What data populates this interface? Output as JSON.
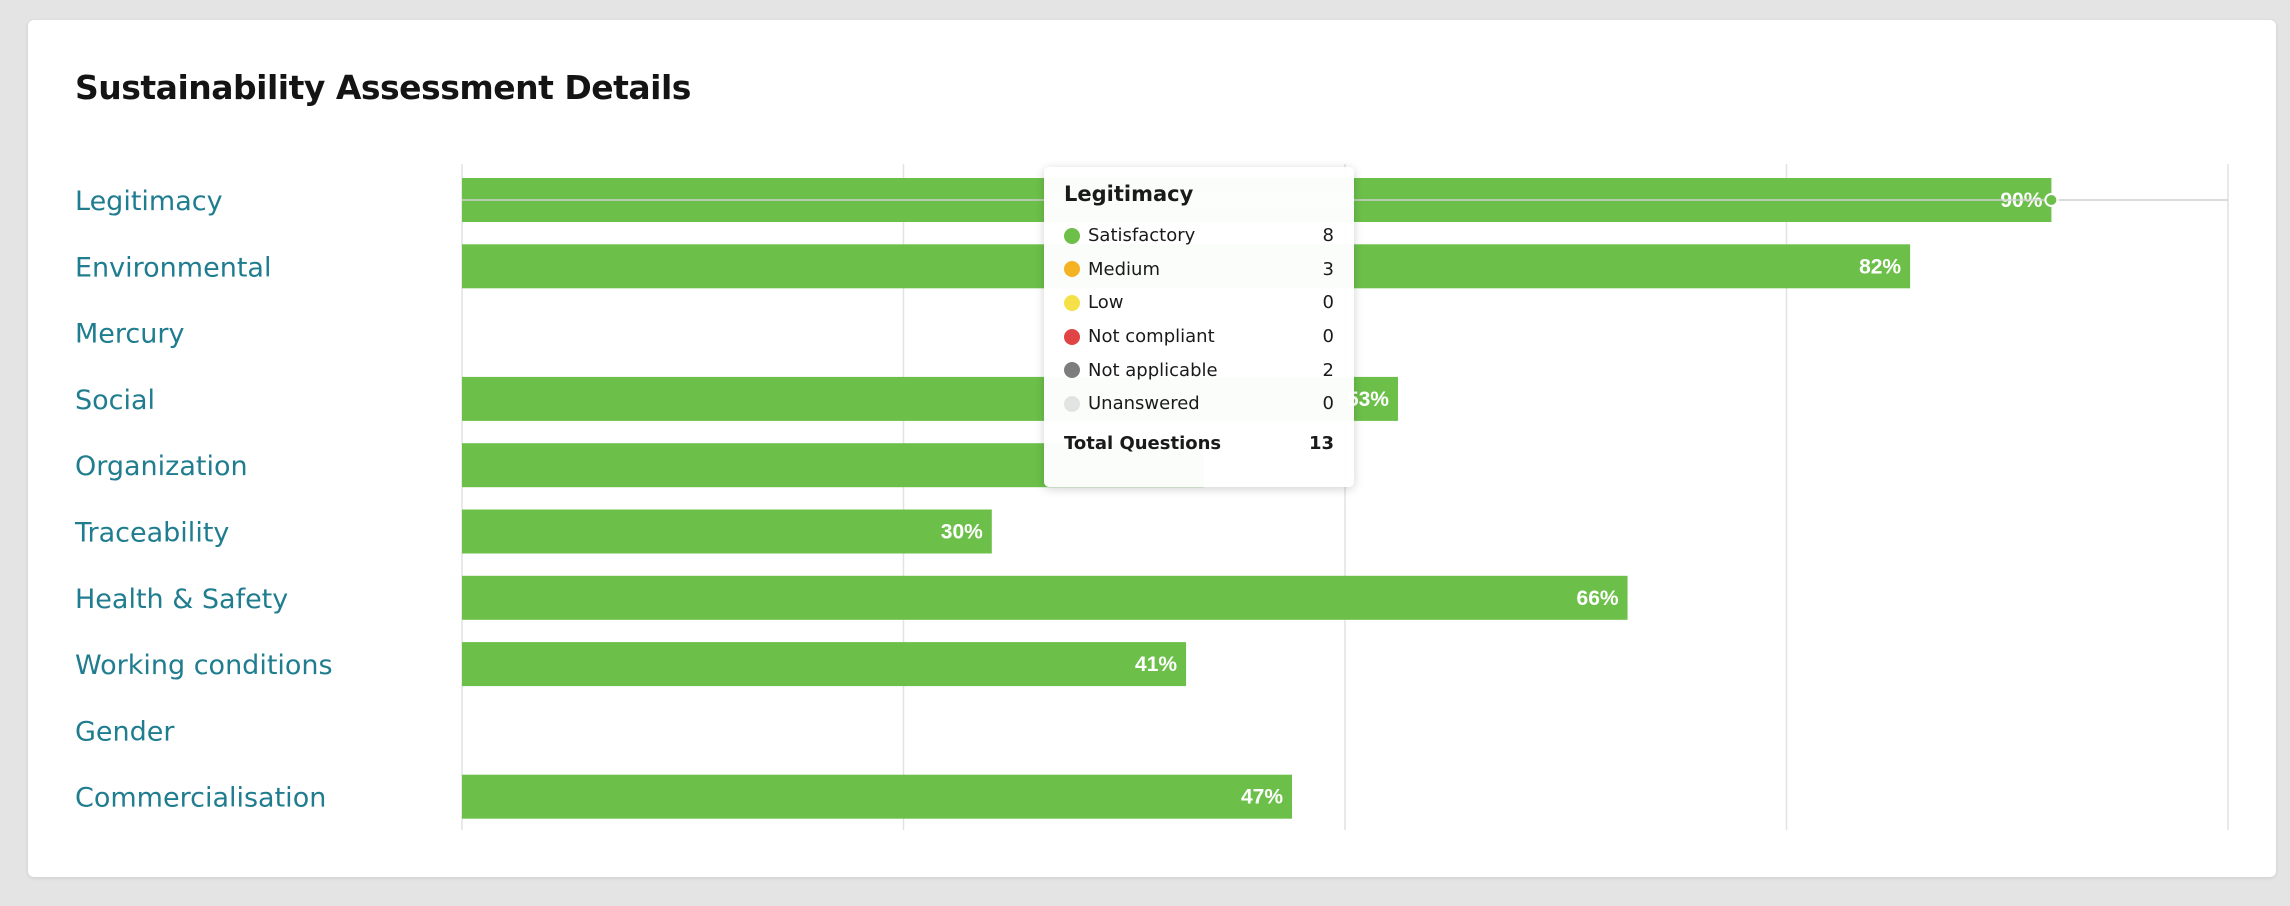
{
  "page": {
    "title": "Sustainability Assessment Details"
  },
  "chart_data": {
    "type": "bar",
    "orientation": "horizontal",
    "categories": [
      "Legitimacy",
      "Environmental",
      "Mercury",
      "Social",
      "Organization",
      "Traceability",
      "Health & Safety",
      "Working conditions",
      "Gender",
      "Commercialisation"
    ],
    "values": [
      90,
      82,
      null,
      53,
      42,
      30,
      66,
      41,
      null,
      47
    ],
    "value_labels": [
      "90%",
      "82%",
      "",
      "53%",
      "",
      "30%",
      "66%",
      "41%",
      "",
      "47%"
    ],
    "xlim": [
      0,
      100
    ],
    "grid": true,
    "bar_color": "#6cc04a",
    "label_color": "#1f7d8f",
    "hovered_category": "Legitimacy"
  },
  "tooltip": {
    "title": "Legitimacy",
    "rows": [
      {
        "label": "Satisfactory",
        "value": "8",
        "color": "#6cc04a"
      },
      {
        "label": "Medium",
        "value": "3",
        "color": "#f5b324"
      },
      {
        "label": "Low",
        "value": "0",
        "color": "#f6e04a"
      },
      {
        "label": "Not compliant",
        "value": "0",
        "color": "#e04444"
      },
      {
        "label": "Not applicable",
        "value": "2",
        "color": "#7d7d7d"
      },
      {
        "label": "Unanswered",
        "value": "0",
        "color": "#e1e4e2"
      }
    ],
    "total_label": "Total Questions",
    "total_value": "13"
  }
}
